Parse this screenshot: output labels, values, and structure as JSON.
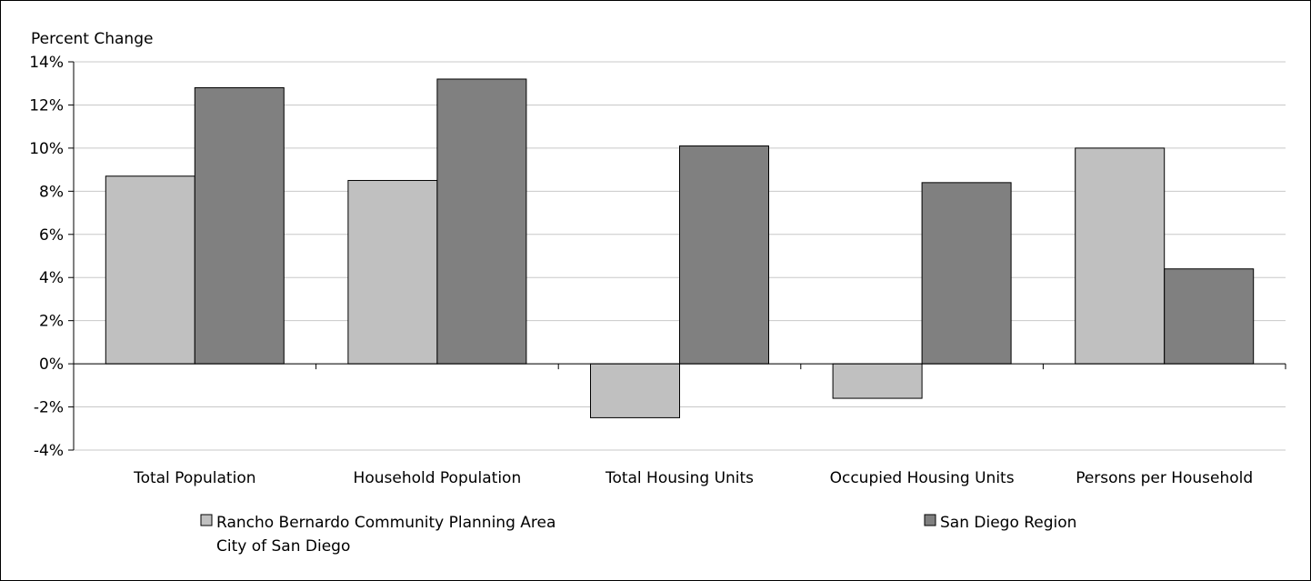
{
  "chart_data": {
    "type": "bar",
    "title": "",
    "ylabel": "Percent Change",
    "xlabel": "",
    "ylim": [
      -4,
      14
    ],
    "yticks": [
      -4,
      -2,
      0,
      2,
      4,
      6,
      8,
      10,
      12,
      14
    ],
    "ytick_labels": [
      "-4%",
      "-2%",
      "0%",
      "2%",
      "4%",
      "6%",
      "8%",
      "10%",
      "12%",
      "14%"
    ],
    "grid": true,
    "legend_position": "bottom",
    "categories": [
      "Total Population",
      "Household Population",
      "Total Housing Units",
      "Occupied Housing Units",
      "Persons per Household"
    ],
    "series": [
      {
        "name": "Rancho Bernardo Community Planning Area",
        "name_line2": "City of San Diego",
        "color": "#c0c0c0",
        "values": [
          8.7,
          8.5,
          -2.5,
          -1.6,
          10.0
        ]
      },
      {
        "name": "San Diego Region",
        "color": "#808080",
        "values": [
          12.8,
          13.2,
          10.1,
          8.4,
          4.4
        ]
      }
    ]
  }
}
